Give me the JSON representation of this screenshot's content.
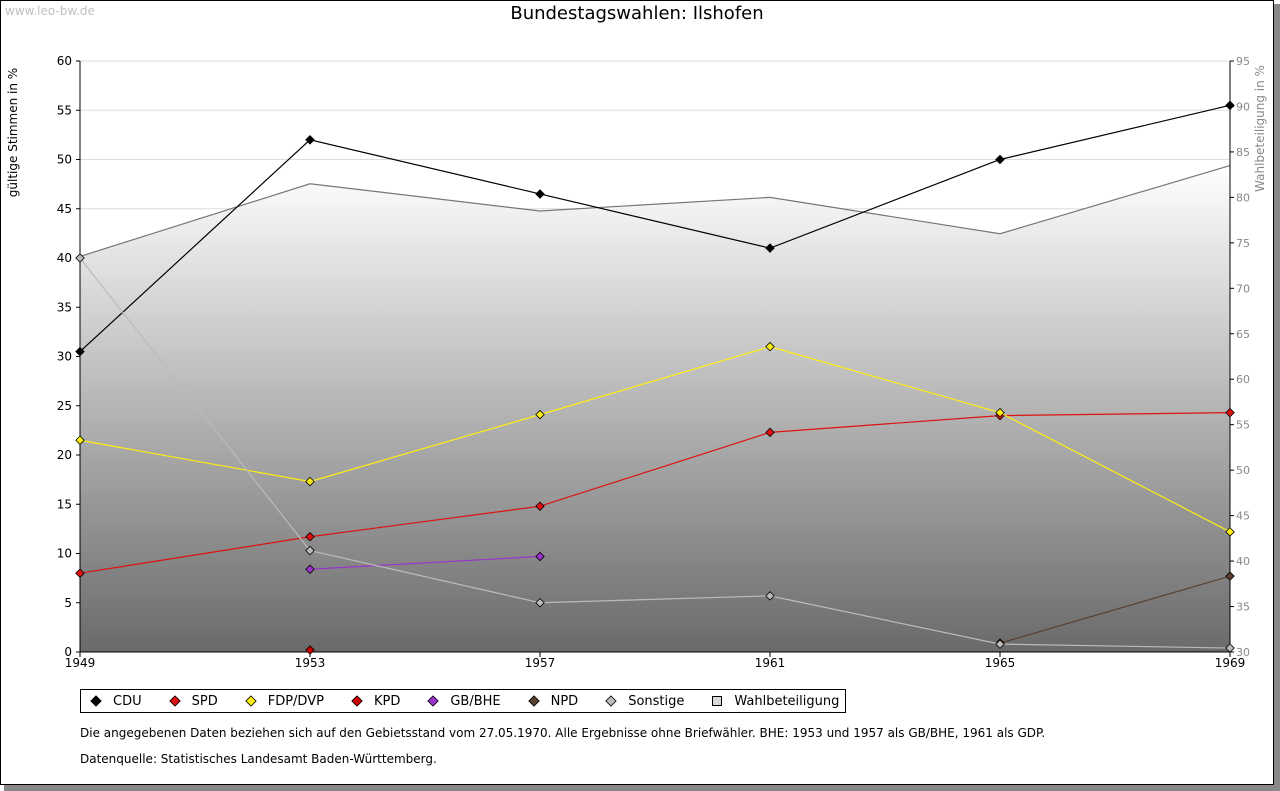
{
  "watermark": "www.leo-bw.de",
  "notes": {
    "note1": "Die angegebenen Daten beziehen sich auf den Gebietsstand vom 27.05.1970. Alle Ergebnisse ohne Briefwähler. BHE: 1953 und 1957 als GB/BHE, 1961 als GDP.",
    "note2": "Datenquelle: Statistisches Landesamt Baden-Württemberg."
  },
  "chart_data": {
    "type": "line",
    "title": "Bundestagswahlen: Ilshofen",
    "xlabel": "",
    "ylabel": "gültige Stimmen in %",
    "y2label": "Wahlbeteiligung in %",
    "categories": [
      "1949",
      "1953",
      "1957",
      "1961",
      "1965",
      "1969"
    ],
    "ylim": [
      0,
      60
    ],
    "y2lim": [
      30,
      95
    ],
    "yticks": [
      0,
      5,
      10,
      15,
      20,
      25,
      30,
      35,
      40,
      45,
      50,
      55,
      60
    ],
    "y2ticks": [
      30,
      35,
      40,
      45,
      50,
      55,
      60,
      65,
      70,
      75,
      80,
      85,
      90,
      95
    ],
    "grid": true,
    "legend_position": "bottom",
    "series": [
      {
        "name": "CDU",
        "color": "#000000",
        "values": [
          30.5,
          52.0,
          46.5,
          41.0,
          50.0,
          55.5
        ]
      },
      {
        "name": "SPD",
        "color": "#dd1111",
        "values": [
          8.0,
          11.7,
          14.8,
          22.3,
          24.0,
          24.3
        ]
      },
      {
        "name": "FDP/DVP",
        "color": "#ffee11",
        "values": [
          21.5,
          17.3,
          24.1,
          31.0,
          24.3,
          12.2
        ]
      },
      {
        "name": "KPD",
        "color": "#cc0000",
        "values": [
          null,
          0.2,
          null,
          null,
          null,
          null
        ]
      },
      {
        "name": "GB/BHE",
        "color": "#9933cc",
        "values": [
          null,
          8.4,
          9.7,
          null,
          null,
          null
        ]
      },
      {
        "name": "NPD",
        "color": "#5a4030",
        "values": [
          null,
          null,
          null,
          null,
          0.9,
          7.7
        ]
      },
      {
        "name": "Sonstige",
        "color": "#bbbbbb",
        "values": [
          40.0,
          10.3,
          5.0,
          5.7,
          0.8,
          0.4
        ]
      }
    ],
    "turnout": {
      "name": "Wahlbeteiligung",
      "color": "#d8d8d8",
      "axis": "right",
      "values": [
        73.5,
        81.5,
        78.5,
        80.0,
        76.0,
        83.5
      ]
    }
  }
}
